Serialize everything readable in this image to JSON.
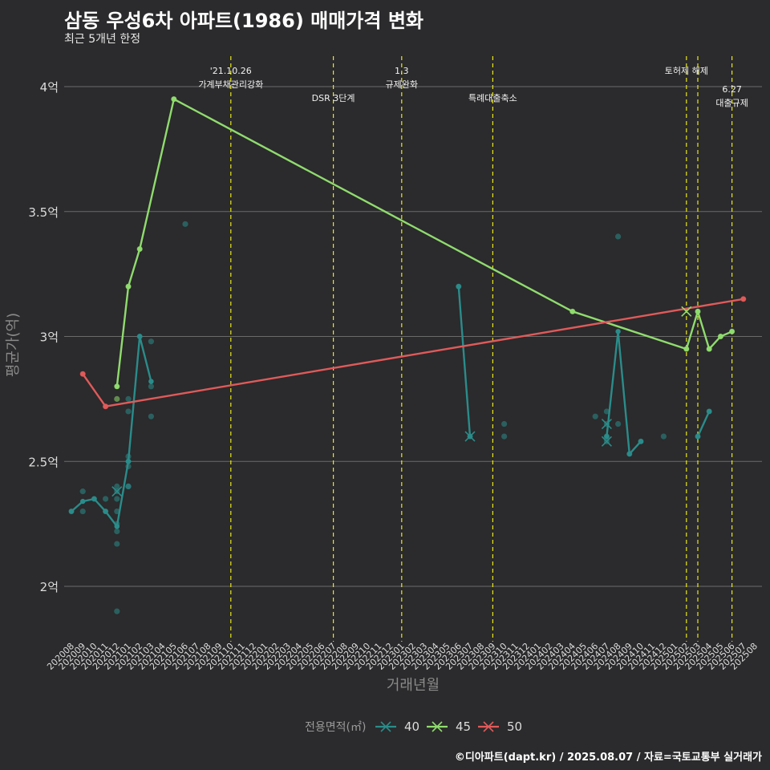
{
  "header": {
    "title": "삼동 우성6차 아파트(1986) 매매가격 변화",
    "subtitle": "최근 5개년 한정"
  },
  "footer": {
    "caption": "©디아파트(dapt.kr) / 2025.08.07 / 자료=국토교통부 실거래가"
  },
  "colors": {
    "background": "#2b2a2c",
    "grid": "#6b6b6b",
    "vline": "#e8e81a",
    "text": "#dcdcdc",
    "axis_title": "#8a8a8a",
    "series_40": "#2a8c8a",
    "series_45": "#8fdc6e",
    "series_50": "#e05a5a"
  },
  "chart_data": {
    "type": "line",
    "title": "삼동 우성6차 아파트(1986) 매매가격 변화",
    "subtitle": "최근 5개년 한정",
    "xlabel": "거래년월",
    "ylabel": "평균가(억)",
    "ylim": [
      1.8,
      4.15
    ],
    "yticks": [
      2,
      2.5,
      3,
      3.5,
      4
    ],
    "ytick_labels": [
      "2억",
      "2.5억",
      "3억",
      "3.5억",
      "4억"
    ],
    "x_categories": [
      "202008",
      "202009",
      "202010",
      "202011",
      "202012",
      "202101",
      "202102",
      "202103",
      "202104",
      "202105",
      "202106",
      "202107",
      "202108",
      "202109",
      "202110",
      "202111",
      "202112",
      "202201",
      "202202",
      "202203",
      "202204",
      "202205",
      "202206",
      "202207",
      "202208",
      "202209",
      "202210",
      "202211",
      "202212",
      "202301",
      "202302",
      "202303",
      "202304",
      "202305",
      "202306",
      "202307",
      "202308",
      "202309",
      "202310",
      "202311",
      "202312",
      "202401",
      "202402",
      "202403",
      "202404",
      "202405",
      "202406",
      "202407",
      "202408",
      "202409",
      "202410",
      "202411",
      "202412",
      "202501",
      "202502",
      "202503",
      "202504",
      "202505",
      "202506",
      "202507",
      "202508"
    ],
    "legend_title": "전용면적(㎡)",
    "legend_position": "bottom",
    "grid": true,
    "series": [
      {
        "name": "40",
        "color_key": "series_40",
        "segments": [
          [
            [
              "202008",
              2.3
            ],
            [
              "202009",
              2.34
            ],
            [
              "202010",
              2.35
            ],
            [
              "202011",
              2.3
            ],
            [
              "202012",
              2.24
            ]
          ],
          [
            [
              "202012",
              2.24
            ],
            [
              "202101",
              2.5
            ],
            [
              "202102",
              3.0
            ],
            [
              "202103",
              2.82
            ]
          ],
          [
            [
              "202306",
              3.2
            ],
            [
              "202307",
              2.6
            ]
          ],
          [
            [
              "202407",
              2.6
            ],
            [
              "202408",
              3.02
            ],
            [
              "202409",
              2.53
            ],
            [
              "202410",
              2.58
            ]
          ],
          [
            [
              "202503",
              2.6
            ],
            [
              "202504",
              2.7
            ]
          ]
        ],
        "points": [
          [
            "202008",
            2.3
          ],
          [
            "202009",
            2.38
          ],
          [
            "202009",
            2.3
          ],
          [
            "202010",
            2.35
          ],
          [
            "202011",
            2.35
          ],
          [
            "202011",
            2.3
          ],
          [
            "202012",
            2.4
          ],
          [
            "202012",
            2.38
          ],
          [
            "202012",
            2.35
          ],
          [
            "202012",
            2.3
          ],
          [
            "202012",
            2.25
          ],
          [
            "202012",
            2.22
          ],
          [
            "202012",
            2.17
          ],
          [
            "202012",
            1.9
          ],
          [
            "202101",
            2.75
          ],
          [
            "202101",
            2.7
          ],
          [
            "202101",
            2.52
          ],
          [
            "202101",
            2.5
          ],
          [
            "202101",
            2.48
          ],
          [
            "202101",
            2.4
          ],
          [
            "202101",
            2.4
          ],
          [
            "202102",
            3.0
          ],
          [
            "202103",
            2.98
          ],
          [
            "202103",
            2.8
          ],
          [
            "202103",
            2.68
          ],
          [
            "202106",
            3.45
          ],
          [
            "202306",
            3.2
          ],
          [
            "202307",
            2.6
          ],
          [
            "202310",
            2.65
          ],
          [
            "202310",
            2.6
          ],
          [
            "202406",
            2.68
          ],
          [
            "202407",
            2.7
          ],
          [
            "202407",
            2.65
          ],
          [
            "202407",
            2.6
          ],
          [
            "202407",
            2.58
          ],
          [
            "202408",
            3.4
          ],
          [
            "202408",
            2.65
          ],
          [
            "202409",
            2.53
          ],
          [
            "202410",
            2.58
          ],
          [
            "202412",
            2.6
          ],
          [
            "202503",
            2.6
          ],
          [
            "202504",
            2.7
          ]
        ],
        "cancelled": [
          [
            "202012",
            2.38
          ],
          [
            "202307",
            2.6
          ],
          [
            "202407",
            2.65
          ],
          [
            "202407",
            2.58
          ]
        ]
      },
      {
        "name": "45",
        "color_key": "series_45",
        "segments": [
          [
            [
              "202012",
              2.8
            ],
            [
              "202101",
              3.2
            ],
            [
              "202102",
              3.35
            ],
            [
              "202105",
              3.95
            ],
            [
              "202404",
              3.1
            ],
            [
              "202502",
              2.95
            ],
            [
              "202503",
              3.1
            ],
            [
              "202504",
              2.95
            ],
            [
              "202505",
              3.0
            ],
            [
              "202506",
              3.02
            ]
          ]
        ],
        "points": [
          [
            "202012",
            2.8
          ],
          [
            "202012",
            2.75
          ],
          [
            "202101",
            3.2
          ],
          [
            "202102",
            3.35
          ],
          [
            "202105",
            3.95
          ],
          [
            "202404",
            3.1
          ],
          [
            "202502",
            2.95
          ],
          [
            "202503",
            3.1
          ],
          [
            "202504",
            2.95
          ],
          [
            "202505",
            3.0
          ],
          [
            "202506",
            3.02
          ]
        ],
        "cancelled": [
          [
            "202502",
            3.1
          ]
        ]
      },
      {
        "name": "50",
        "color_key": "series_50",
        "segments": [
          [
            [
              "202009",
              2.85
            ],
            [
              "202011",
              2.72
            ],
            [
              "202507",
              3.15
            ]
          ]
        ],
        "points": [
          [
            "202009",
            2.85
          ],
          [
            "202011",
            2.72
          ],
          [
            "202507",
            3.15
          ]
        ],
        "cancelled": []
      }
    ],
    "annotations": [
      {
        "x": "202110",
        "lines": [
          "'21.10.26",
          "가계부채관리강화"
        ],
        "level": 0
      },
      {
        "x": "202207",
        "lines": [
          "DSR 3단계"
        ],
        "level": 1
      },
      {
        "x": "202301",
        "lines": [
          "1.3",
          "규제완화"
        ],
        "level": 0
      },
      {
        "x": "202309",
        "lines": [
          "특례대출축소"
        ],
        "level": 1
      },
      {
        "x": "202502",
        "lines": [
          "토허제 해제"
        ],
        "level": 0
      },
      {
        "x": "202503",
        "lines": [],
        "level": 0
      },
      {
        "x": "202506",
        "lines": [
          "6.27",
          "대출규제"
        ],
        "level": 2
      }
    ]
  }
}
